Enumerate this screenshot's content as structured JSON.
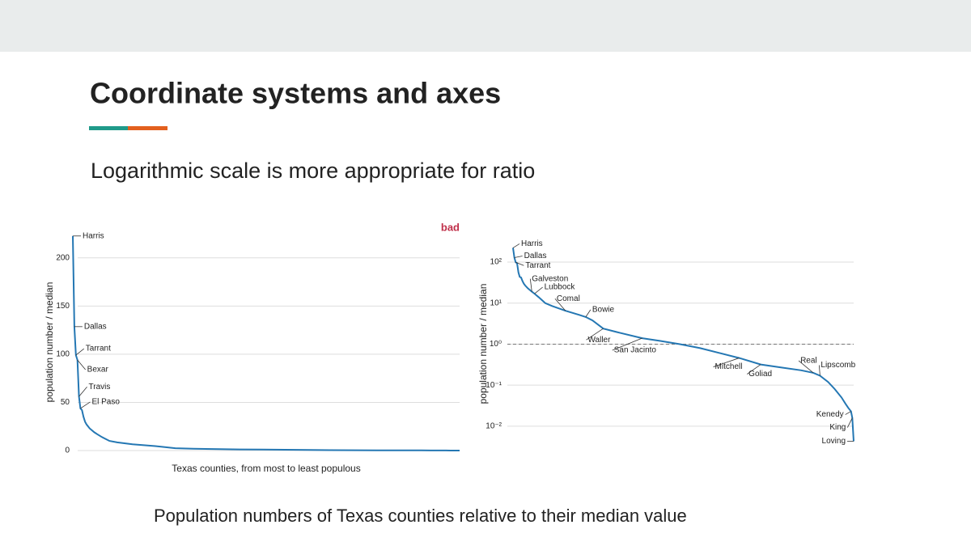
{
  "slide": {
    "title": "Coordinate systems and axes",
    "subtitle": "Logarithmic scale is more appropriate for ratio",
    "caption": "Population numbers of Texas counties relative to their median value"
  },
  "chart_data": [
    {
      "type": "line",
      "annotation": "bad",
      "annotation_color": "#c0304a",
      "color": "#2477b3",
      "xlabel": "Texas counties, from most to least populous",
      "ylabel": "population number / median",
      "x": [
        1,
        2,
        3,
        4,
        5,
        6,
        7,
        8,
        9,
        10,
        12,
        15,
        17,
        20,
        25,
        30,
        40,
        50,
        55,
        60,
        68,
        80,
        97,
        110,
        125,
        140,
        155,
        169,
        185,
        200,
        215,
        224,
        229,
        235,
        240,
        245,
        248,
        250,
        252,
        253,
        254
      ],
      "values": [
        222.7,
        128.6,
        99,
        94,
        56,
        43.7,
        42,
        35,
        30,
        27,
        23,
        19,
        17,
        14,
        10,
        8.5,
        6.5,
        5.2,
        4.6,
        3.8,
        2.4,
        1.9,
        1.4,
        1.2,
        1.0,
        0.8,
        0.6,
        0.46,
        0.32,
        0.27,
        0.23,
        0.2,
        0.17,
        0.12,
        0.08,
        0.05,
        0.035,
        0.028,
        0.023,
        0.016,
        0.0043
      ],
      "point_labels": [
        "Harris",
        "Dallas",
        "Tarrant",
        "Bexar",
        "Travis",
        "El Paso",
        null,
        null,
        null,
        null,
        null,
        null,
        null,
        null,
        null,
        null,
        null,
        null,
        null,
        null,
        null,
        null,
        null,
        null,
        null,
        null,
        null,
        null,
        null,
        null,
        null,
        null,
        null,
        null,
        null,
        null,
        null,
        null,
        null,
        null,
        null
      ],
      "xlim": [
        1,
        254
      ],
      "ylim": [
        0,
        225
      ],
      "yticks": [
        0,
        50,
        100,
        150,
        200
      ],
      "grid": true
    },
    {
      "type": "line",
      "color": "#2477b3",
      "log_y": true,
      "reference_line": 1,
      "ylabel": "population number / median",
      "x": [
        1,
        2,
        3,
        4,
        5,
        6,
        7,
        8,
        9,
        10,
        12,
        15,
        17,
        20,
        25,
        30,
        40,
        50,
        55,
        60,
        68,
        80,
        97,
        110,
        125,
        140,
        155,
        169,
        185,
        200,
        215,
        224,
        229,
        235,
        240,
        245,
        248,
        250,
        252,
        253,
        254
      ],
      "values": [
        222.7,
        128.6,
        99,
        94,
        56,
        43.7,
        42,
        35,
        30,
        27,
        23,
        19,
        17,
        14,
        10,
        8.5,
        6.5,
        5.2,
        4.6,
        3.8,
        2.4,
        1.9,
        1.4,
        1.2,
        1.0,
        0.8,
        0.6,
        0.46,
        0.32,
        0.27,
        0.23,
        0.2,
        0.17,
        0.12,
        0.08,
        0.05,
        0.035,
        0.028,
        0.023,
        0.016,
        0.0043
      ],
      "point_labels": [
        "Harris",
        "Dallas",
        "Tarrant",
        null,
        null,
        null,
        null,
        null,
        null,
        null,
        null,
        "Galveston",
        "Lubbock",
        null,
        null,
        null,
        "Comal",
        null,
        "Bowie",
        null,
        "Waller",
        null,
        "San Jacinto",
        null,
        null,
        null,
        null,
        "Mitchell",
        "Goliad",
        null,
        null,
        "Real",
        "Lipscomb",
        null,
        null,
        null,
        null,
        null,
        "Kenedy",
        "King",
        "Loving"
      ],
      "xlim": [
        1,
        254
      ],
      "ylim": [
        0.0035,
        260
      ],
      "yticks": [
        {
          "value": 0.01,
          "label": "10⁻²"
        },
        {
          "value": 0.1,
          "label": "10⁻¹"
        },
        {
          "value": 1,
          "label": "10⁰"
        },
        {
          "value": 10,
          "label": "10¹"
        },
        {
          "value": 100,
          "label": "10²"
        }
      ],
      "grid": true
    }
  ]
}
